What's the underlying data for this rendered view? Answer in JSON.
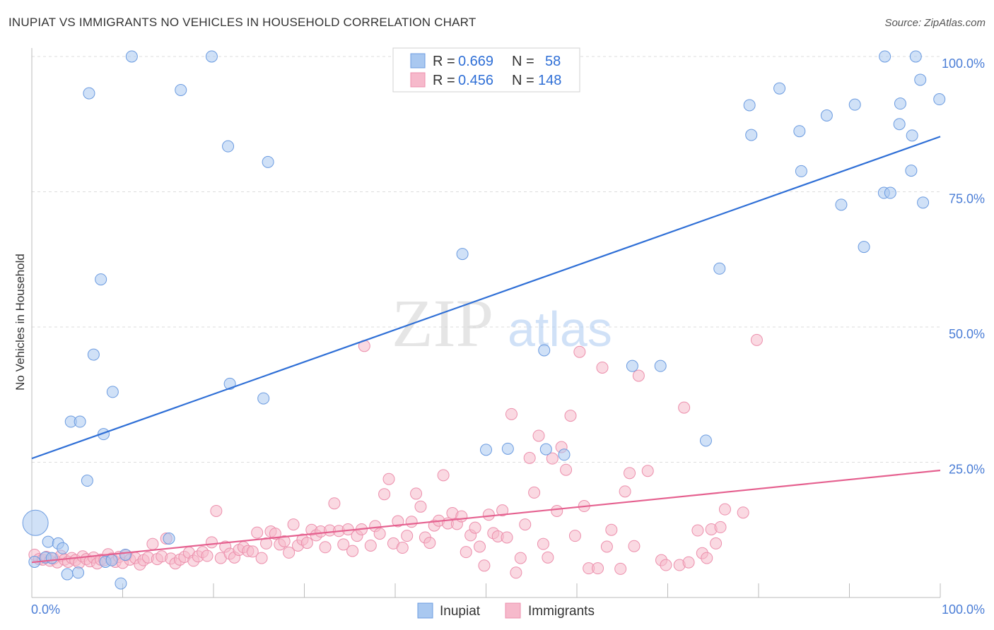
{
  "header": {
    "title": "INUPIAT VS IMMIGRANTS NO VEHICLES IN HOUSEHOLD CORRELATION CHART",
    "source": "Source: ZipAtlas.com"
  },
  "watermark": {
    "zip": "ZIP",
    "atlas": "atlas"
  },
  "colors": {
    "inupiat_fill": "#a9c8f0",
    "inupiat_stroke": "#6b9be0",
    "inupiat_line": "#2f6fd6",
    "immigrants_fill": "#f6b9cb",
    "immigrants_stroke": "#ec8fac",
    "immigrants_line": "#e5608f",
    "tick_text": "#4a7dd6",
    "grid": "#dddddd"
  },
  "legend": {
    "rows": [
      {
        "r_label": "R =",
        "r_value": "0.669",
        "n_label": "N =",
        "n_value": "58"
      },
      {
        "r_label": "R =",
        "r_value": "0.456",
        "n_label": "N =",
        "n_value": "148"
      }
    ]
  },
  "bottom_legend": {
    "items": [
      "Inupiat",
      "Immigrants"
    ]
  },
  "chart_data": {
    "type": "scatter",
    "title": "INUPIAT VS IMMIGRANTS NO VEHICLES IN HOUSEHOLD CORRELATION CHART",
    "xlabel": "",
    "ylabel": "No Vehicles in Household",
    "xlim": [
      0,
      100
    ],
    "ylim": [
      0,
      100
    ],
    "x_tick_labels": [
      "0.0%",
      "100.0%"
    ],
    "y_tick_labels": [
      "100.0%",
      "75.0%",
      "50.0%",
      "25.0%"
    ],
    "y_ticks": [
      100,
      75,
      50,
      25
    ],
    "grid": true,
    "legend_position": "top-center",
    "series": [
      {
        "name": "Inupiat",
        "r": 0.669,
        "n": 58,
        "trend": {
          "x": [
            0,
            100
          ],
          "y": [
            25.7,
            85.2
          ]
        },
        "points": [
          {
            "x": 0.3,
            "y": 6.6
          },
          {
            "x": 1.5,
            "y": 7.4
          },
          {
            "x": 1.8,
            "y": 10.3
          },
          {
            "x": 2.2,
            "y": 7.3
          },
          {
            "x": 2.9,
            "y": 10.0
          },
          {
            "x": 3.4,
            "y": 9.1
          },
          {
            "x": 3.9,
            "y": 4.3
          },
          {
            "x": 4.3,
            "y": 32.5
          },
          {
            "x": 5.1,
            "y": 4.6
          },
          {
            "x": 5.3,
            "y": 32.5
          },
          {
            "x": 6.1,
            "y": 21.6
          },
          {
            "x": 6.3,
            "y": 93.2
          },
          {
            "x": 6.8,
            "y": 44.9
          },
          {
            "x": 7.6,
            "y": 58.8
          },
          {
            "x": 7.9,
            "y": 30.2
          },
          {
            "x": 8.1,
            "y": 6.6
          },
          {
            "x": 8.8,
            "y": 6.9
          },
          {
            "x": 8.9,
            "y": 38.0
          },
          {
            "x": 9.8,
            "y": 2.6
          },
          {
            "x": 10.3,
            "y": 7.9
          },
          {
            "x": 11.0,
            "y": 100
          },
          {
            "x": 15.1,
            "y": 10.9
          },
          {
            "x": 16.4,
            "y": 93.8
          },
          {
            "x": 19.8,
            "y": 100
          },
          {
            "x": 21.6,
            "y": 83.4
          },
          {
            "x": 21.8,
            "y": 39.5
          },
          {
            "x": 25.5,
            "y": 36.8
          },
          {
            "x": 26.0,
            "y": 80.5
          },
          {
            "x": 0.4,
            "y": 13.8,
            "large": true
          },
          {
            "x": 47.4,
            "y": 63.5
          },
          {
            "x": 50.0,
            "y": 27.3
          },
          {
            "x": 52.4,
            "y": 27.5
          },
          {
            "x": 56.4,
            "y": 45.7
          },
          {
            "x": 56.6,
            "y": 27.4
          },
          {
            "x": 58.6,
            "y": 26.4
          },
          {
            "x": 66.1,
            "y": 42.8
          },
          {
            "x": 69.2,
            "y": 42.8
          },
          {
            "x": 74.2,
            "y": 29.0
          },
          {
            "x": 75.7,
            "y": 60.8
          },
          {
            "x": 79.0,
            "y": 91.0
          },
          {
            "x": 79.2,
            "y": 85.5
          },
          {
            "x": 82.3,
            "y": 94.1
          },
          {
            "x": 84.5,
            "y": 86.2
          },
          {
            "x": 84.7,
            "y": 78.8
          },
          {
            "x": 87.5,
            "y": 89.1
          },
          {
            "x": 89.1,
            "y": 72.6
          },
          {
            "x": 90.6,
            "y": 91.1
          },
          {
            "x": 91.6,
            "y": 64.8
          },
          {
            "x": 93.8,
            "y": 74.8
          },
          {
            "x": 94.5,
            "y": 74.8
          },
          {
            "x": 93.9,
            "y": 100
          },
          {
            "x": 95.5,
            "y": 87.5
          },
          {
            "x": 95.6,
            "y": 91.3
          },
          {
            "x": 96.9,
            "y": 85.4
          },
          {
            "x": 96.8,
            "y": 78.9
          },
          {
            "x": 97.3,
            "y": 100
          },
          {
            "x": 97.8,
            "y": 95.7
          },
          {
            "x": 98.1,
            "y": 73.0
          },
          {
            "x": 99.9,
            "y": 92.1
          }
        ]
      },
      {
        "name": "Immigrants",
        "r": 0.456,
        "n": 148,
        "trend": {
          "x": [
            0,
            100
          ],
          "y": [
            6.5,
            23.5
          ]
        },
        "points": [
          {
            "x": 0.3,
            "y": 7.9
          },
          {
            "x": 0.8,
            "y": 7.1
          },
          {
            "x": 1.2,
            "y": 7.0
          },
          {
            "x": 1.6,
            "y": 7.5
          },
          {
            "x": 2.0,
            "y": 6.8
          },
          {
            "x": 2.4,
            "y": 7.2
          },
          {
            "x": 2.8,
            "y": 6.5
          },
          {
            "x": 3.2,
            "y": 7.7
          },
          {
            "x": 3.6,
            "y": 7.0
          },
          {
            "x": 4.0,
            "y": 6.6
          },
          {
            "x": 4.4,
            "y": 7.3
          },
          {
            "x": 4.8,
            "y": 6.9
          },
          {
            "x": 5.2,
            "y": 6.4
          },
          {
            "x": 5.6,
            "y": 7.6
          },
          {
            "x": 6.0,
            "y": 7.1
          },
          {
            "x": 6.4,
            "y": 6.7
          },
          {
            "x": 6.8,
            "y": 7.4
          },
          {
            "x": 7.2,
            "y": 6.3
          },
          {
            "x": 7.6,
            "y": 7.0
          },
          {
            "x": 8.0,
            "y": 6.9
          },
          {
            "x": 8.4,
            "y": 8.0
          },
          {
            "x": 8.8,
            "y": 7.2
          },
          {
            "x": 9.2,
            "y": 6.6
          },
          {
            "x": 9.6,
            "y": 7.5
          },
          {
            "x": 10.0,
            "y": 6.4
          },
          {
            "x": 10.4,
            "y": 7.8
          },
          {
            "x": 10.8,
            "y": 7.0
          },
          {
            "x": 11.4,
            "y": 7.3
          },
          {
            "x": 11.9,
            "y": 6.1
          },
          {
            "x": 12.3,
            "y": 6.9
          },
          {
            "x": 12.8,
            "y": 7.4
          },
          {
            "x": 13.3,
            "y": 9.9
          },
          {
            "x": 13.8,
            "y": 7.1
          },
          {
            "x": 14.3,
            "y": 7.6
          },
          {
            "x": 14.8,
            "y": 10.9
          },
          {
            "x": 15.3,
            "y": 7.2
          },
          {
            "x": 15.8,
            "y": 6.3
          },
          {
            "x": 16.3,
            "y": 7.0
          },
          {
            "x": 16.8,
            "y": 7.5
          },
          {
            "x": 17.3,
            "y": 8.3
          },
          {
            "x": 17.8,
            "y": 6.8
          },
          {
            "x": 18.3,
            "y": 7.6
          },
          {
            "x": 18.8,
            "y": 8.4
          },
          {
            "x": 19.3,
            "y": 7.7
          },
          {
            "x": 19.8,
            "y": 10.2
          },
          {
            "x": 20.3,
            "y": 16.0
          },
          {
            "x": 20.8,
            "y": 7.3
          },
          {
            "x": 21.3,
            "y": 9.4
          },
          {
            "x": 21.8,
            "y": 8.1
          },
          {
            "x": 22.3,
            "y": 7.4
          },
          {
            "x": 22.8,
            "y": 8.8
          },
          {
            "x": 23.3,
            "y": 9.3
          },
          {
            "x": 23.8,
            "y": 8.6
          },
          {
            "x": 24.3,
            "y": 8.5
          },
          {
            "x": 24.8,
            "y": 12.0
          },
          {
            "x": 25.3,
            "y": 7.3
          },
          {
            "x": 25.8,
            "y": 10.0
          },
          {
            "x": 26.3,
            "y": 12.2
          },
          {
            "x": 26.8,
            "y": 11.8
          },
          {
            "x": 27.3,
            "y": 9.8
          },
          {
            "x": 27.8,
            "y": 10.4
          },
          {
            "x": 28.3,
            "y": 8.3
          },
          {
            "x": 28.8,
            "y": 13.5
          },
          {
            "x": 29.3,
            "y": 9.6
          },
          {
            "x": 29.8,
            "y": 10.7
          },
          {
            "x": 30.3,
            "y": 10.1
          },
          {
            "x": 30.8,
            "y": 12.5
          },
          {
            "x": 31.3,
            "y": 11.5
          },
          {
            "x": 31.8,
            "y": 12.2
          },
          {
            "x": 32.3,
            "y": 9.3
          },
          {
            "x": 32.8,
            "y": 12.4
          },
          {
            "x": 33.3,
            "y": 17.4
          },
          {
            "x": 33.8,
            "y": 12.3
          },
          {
            "x": 34.3,
            "y": 9.8
          },
          {
            "x": 34.8,
            "y": 12.6
          },
          {
            "x": 35.3,
            "y": 8.6
          },
          {
            "x": 35.8,
            "y": 11.4
          },
          {
            "x": 36.3,
            "y": 12.6
          },
          {
            "x": 36.6,
            "y": 46.5
          },
          {
            "x": 37.3,
            "y": 9.6
          },
          {
            "x": 37.8,
            "y": 13.2
          },
          {
            "x": 38.3,
            "y": 11.8
          },
          {
            "x": 38.8,
            "y": 19.1
          },
          {
            "x": 39.3,
            "y": 21.9
          },
          {
            "x": 39.8,
            "y": 10.0
          },
          {
            "x": 40.3,
            "y": 14.1
          },
          {
            "x": 40.8,
            "y": 9.2
          },
          {
            "x": 41.3,
            "y": 11.4
          },
          {
            "x": 41.8,
            "y": 14.0
          },
          {
            "x": 42.3,
            "y": 19.2
          },
          {
            "x": 42.8,
            "y": 16.8
          },
          {
            "x": 43.3,
            "y": 11.1
          },
          {
            "x": 43.8,
            "y": 10.1
          },
          {
            "x": 44.3,
            "y": 13.3
          },
          {
            "x": 44.8,
            "y": 14.2
          },
          {
            "x": 45.3,
            "y": 22.6
          },
          {
            "x": 45.8,
            "y": 13.7
          },
          {
            "x": 46.3,
            "y": 15.6
          },
          {
            "x": 46.8,
            "y": 13.6
          },
          {
            "x": 47.3,
            "y": 15.0
          },
          {
            "x": 47.8,
            "y": 8.4
          },
          {
            "x": 48.3,
            "y": 11.5
          },
          {
            "x": 48.8,
            "y": 12.9
          },
          {
            "x": 49.3,
            "y": 9.4
          },
          {
            "x": 49.8,
            "y": 5.9
          },
          {
            "x": 50.3,
            "y": 15.3
          },
          {
            "x": 50.8,
            "y": 11.9
          },
          {
            "x": 51.3,
            "y": 11.3
          },
          {
            "x": 51.8,
            "y": 16.1
          },
          {
            "x": 52.3,
            "y": 11.1
          },
          {
            "x": 52.8,
            "y": 33.9
          },
          {
            "x": 53.3,
            "y": 4.6
          },
          {
            "x": 53.8,
            "y": 7.3
          },
          {
            "x": 54.3,
            "y": 13.5
          },
          {
            "x": 54.8,
            "y": 25.8
          },
          {
            "x": 55.3,
            "y": 19.4
          },
          {
            "x": 55.8,
            "y": 29.9
          },
          {
            "x": 56.3,
            "y": 9.9
          },
          {
            "x": 56.8,
            "y": 7.4
          },
          {
            "x": 57.3,
            "y": 25.7
          },
          {
            "x": 57.8,
            "y": 16.0
          },
          {
            "x": 58.3,
            "y": 27.8
          },
          {
            "x": 58.8,
            "y": 23.6
          },
          {
            "x": 59.3,
            "y": 33.6
          },
          {
            "x": 59.8,
            "y": 11.4
          },
          {
            "x": 60.3,
            "y": 45.4
          },
          {
            "x": 60.8,
            "y": 16.9
          },
          {
            "x": 61.3,
            "y": 5.4
          },
          {
            "x": 62.3,
            "y": 5.4
          },
          {
            "x": 62.8,
            "y": 42.5
          },
          {
            "x": 63.3,
            "y": 9.4
          },
          {
            "x": 63.8,
            "y": 12.5
          },
          {
            "x": 64.8,
            "y": 5.3
          },
          {
            "x": 65.3,
            "y": 19.6
          },
          {
            "x": 65.8,
            "y": 23.0
          },
          {
            "x": 66.3,
            "y": 9.5
          },
          {
            "x": 66.8,
            "y": 41.0
          },
          {
            "x": 67.8,
            "y": 23.4
          },
          {
            "x": 69.3,
            "y": 6.9
          },
          {
            "x": 69.8,
            "y": 6.0
          },
          {
            "x": 71.3,
            "y": 6.0
          },
          {
            "x": 71.8,
            "y": 35.1
          },
          {
            "x": 72.3,
            "y": 6.5
          },
          {
            "x": 73.3,
            "y": 12.4
          },
          {
            "x": 73.8,
            "y": 8.2
          },
          {
            "x": 74.3,
            "y": 7.3
          },
          {
            "x": 74.8,
            "y": 12.6
          },
          {
            "x": 75.3,
            "y": 10.0
          },
          {
            "x": 75.8,
            "y": 13.0
          },
          {
            "x": 76.3,
            "y": 16.3
          },
          {
            "x": 78.3,
            "y": 15.7
          },
          {
            "x": 79.8,
            "y": 47.6
          }
        ]
      }
    ]
  }
}
